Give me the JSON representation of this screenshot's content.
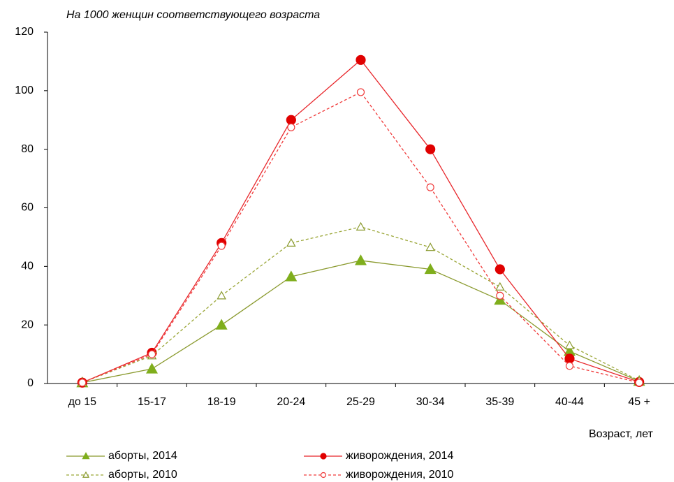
{
  "chart_data": {
    "type": "line",
    "title": "На 1000 женщин соответствующего возраста",
    "x_label": "Возраст, лет",
    "categories": [
      "до 15",
      "15-17",
      "18-19",
      "20-24",
      "25-29",
      "30-34",
      "35-39",
      "40-44",
      "45 +"
    ],
    "series": [
      {
        "name": "аборты, 2014",
        "color": "#8a9a2e",
        "marker_color": "#7fae1c",
        "marker": "triangle",
        "filled": true,
        "dashed": false,
        "values": [
          0.3,
          5,
          20,
          36.5,
          42,
          39,
          28.5,
          11,
          0.8
        ]
      },
      {
        "name": "живорождения, 2014",
        "color": "#e8262b",
        "marker_color": "#e00000",
        "marker": "circle",
        "filled": true,
        "dashed": false,
        "values": [
          0.3,
          10.5,
          48,
          90,
          110.5,
          80,
          39,
          8.5,
          0.5
        ]
      },
      {
        "name": "аборты, 2010",
        "color": "#9aa636",
        "marker_color": "#8a9a2e",
        "marker": "triangle",
        "filled": false,
        "dashed": true,
        "values": [
          0.3,
          9.5,
          30,
          48,
          53.5,
          46.5,
          33,
          13,
          1
        ]
      },
      {
        "name": "живорождения, 2010",
        "color": "#f03a3a",
        "marker_color": "#f03a3a",
        "marker": "circle",
        "filled": false,
        "dashed": true,
        "values": [
          0.3,
          10,
          47,
          87.5,
          99.5,
          67,
          30,
          6,
          0.3
        ]
      }
    ],
    "ylim": [
      0,
      120
    ],
    "yticks": [
      0,
      20,
      40,
      60,
      80,
      100,
      120
    ],
    "grid": false,
    "legend": "bottom"
  }
}
